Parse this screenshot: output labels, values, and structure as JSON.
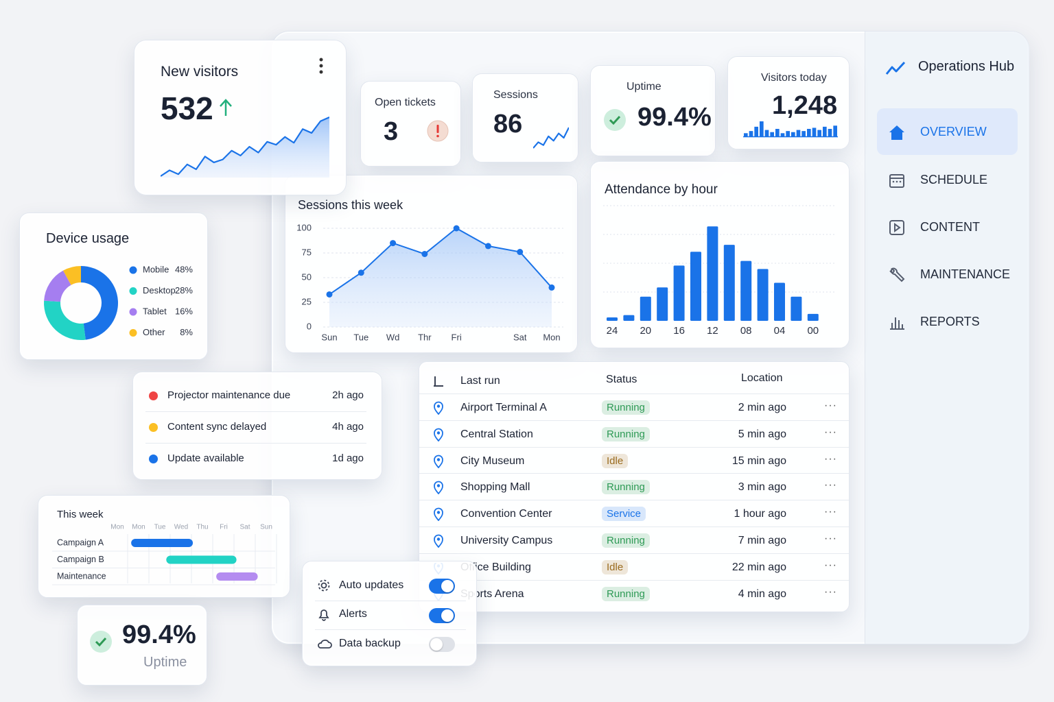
{
  "sidebar": {
    "title": "Operations Hub",
    "nav": [
      "OVERVIEW",
      "SCHEDULE",
      "CONTENT",
      "MAINTENANCE",
      "REPORTS"
    ]
  },
  "kpis": [
    {
      "label": "Open tickets",
      "value": "3"
    },
    {
      "label": "Sessions",
      "value": "86",
      "sparkline": [
        4,
        8,
        6,
        12,
        9,
        14,
        11,
        18
      ]
    },
    {
      "label": "Uptime",
      "value": "99.4%"
    },
    {
      "label": "Visitors today",
      "value": "1,248",
      "bars": [
        3,
        5,
        9,
        14,
        6,
        4,
        7,
        3,
        5,
        4,
        6,
        5,
        7,
        8,
        6,
        9,
        7,
        10
      ]
    }
  ],
  "new_visitors": {
    "title": "New visitors",
    "value": "532",
    "sparkline": [
      10,
      16,
      12,
      22,
      17,
      30,
      24,
      27,
      36,
      31,
      40,
      34,
      45,
      42,
      50,
      44,
      58,
      54,
      66,
      70
    ]
  },
  "chart_data": [
    {
      "type": "line",
      "title": "Sessions this week",
      "categories": [
        "Sun",
        "Tue",
        "Wd",
        "Thr",
        "Fri",
        null,
        "Sat",
        "Mon"
      ],
      "values": [
        33,
        55,
        85,
        74,
        100,
        82,
        76,
        40
      ],
      "ylim": [
        0,
        100
      ],
      "yticks": [
        0,
        25,
        50,
        75,
        100
      ],
      "grid": true,
      "color": "#1a73e8"
    },
    {
      "type": "bar",
      "title": "Attendance by hour",
      "categories": [
        "24",
        null,
        "20",
        null,
        "16",
        null,
        "12",
        null,
        "08",
        null,
        "04",
        null,
        "00"
      ],
      "values": [
        3,
        5,
        21,
        29,
        48,
        60,
        82,
        66,
        52,
        45,
        33,
        21,
        6
      ],
      "ylim": [
        0,
        100
      ],
      "grid": true,
      "color": "#1a73e8"
    },
    {
      "type": "donut",
      "title": "Device usage",
      "categories": [
        "Mobile",
        "Desktop",
        "Tablet",
        "Other"
      ],
      "values": [
        48,
        28,
        16,
        8
      ],
      "value_labels": [
        "48%",
        "28%",
        "16%",
        "8%"
      ],
      "colors": [
        "#1a73e8",
        "#22d3c5",
        "#a57ef0",
        "#fbbf24"
      ]
    }
  ],
  "alerts": [
    {
      "text": "Projector maintenance due",
      "time": "2h ago",
      "color": "#ef4444"
    },
    {
      "text": "Content sync delayed",
      "time": "4h ago",
      "color": "#fbbf24"
    },
    {
      "text": "Update available",
      "time": "1d ago",
      "color": "#1a73e8"
    }
  ],
  "schedule": {
    "title": "This week",
    "days": [
      "Mon",
      "Mon",
      "Tue",
      "Wed",
      "Thu",
      "Fri",
      "Sat",
      "Sun"
    ],
    "tasks": [
      {
        "name": "Campaign A",
        "start": 0.65,
        "end": 3.55,
        "color": "#1a73e8"
      },
      {
        "name": "Campaign B",
        "start": 2.3,
        "end": 5.6,
        "color": "#22d3c5"
      },
      {
        "name": "Maintenance",
        "start": 4.65,
        "end": 6.6,
        "color": "#b48cf0"
      }
    ]
  },
  "uptime_card": {
    "value": "99.4%",
    "label": "Uptime"
  },
  "settings": [
    {
      "label": "Auto updates",
      "on": true
    },
    {
      "label": "Alerts",
      "on": true
    },
    {
      "label": "Data backup",
      "on": false
    }
  ],
  "table": {
    "headers": [
      "Last run",
      "Status",
      "Location"
    ],
    "rows": [
      {
        "name": "Airport Terminal A",
        "status": "Running",
        "time": "2 min ago",
        "status_color": "#2e9a55"
      },
      {
        "name": "Central Station",
        "status": "Running",
        "time": "5 min ago",
        "status_color": "#2e9a55"
      },
      {
        "name": "City Museum",
        "status": "Idle",
        "time": "15 min ago",
        "status_color": "#9a6b1e"
      },
      {
        "name": "Shopping Mall",
        "status": "Running",
        "time": "3 min ago",
        "status_color": "#2e9a55"
      },
      {
        "name": "Convention Center",
        "status": "Service",
        "time": "1 hour ago",
        "status_color": "#1a73e8"
      },
      {
        "name": "University Campus",
        "status": "Running",
        "time": "7 min ago",
        "status_color": "#2e9a55"
      },
      {
        "name": "Office Building",
        "status": "Idle",
        "time": "22 min ago",
        "status_color": "#9a6b1e"
      },
      {
        "name": "Sports Arena",
        "status": "Running",
        "time": "4 min ago",
        "status_color": "#2e9a55"
      }
    ]
  }
}
